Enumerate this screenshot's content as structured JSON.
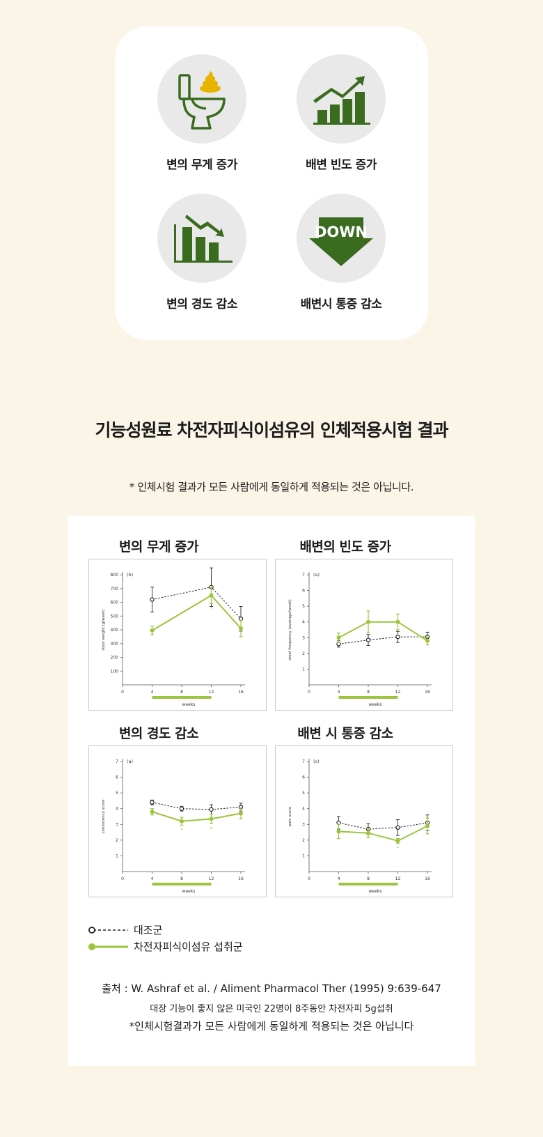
{
  "features": [
    {
      "icon": "toilet-poop-icon",
      "label": "변의 무게 증가"
    },
    {
      "icon": "rising-bar-chart-icon",
      "label": "배변 빈도 증가"
    },
    {
      "icon": "falling-bar-chart-icon",
      "label": "변의 경도 감소"
    },
    {
      "icon": "down-arrow-icon",
      "label": "배변시 통증 감소",
      "icon_text": "DOWN"
    }
  ],
  "colors": {
    "accent_dark": "#3a6b1f",
    "accent_green": "#9cc43c",
    "background": "#fbf5e8",
    "poop": "#e8b400"
  },
  "main_title": "기능성원료 차전자피식이섬유의 인체적용시험 결과",
  "disclaimer_top": "* 인체시험 결과가 모든 사람에게 동일하게 적용되는 것은 아닙니다.",
  "chart_data": [
    {
      "type": "line",
      "title": "변의 무게 증가",
      "panel_tag": "(b)",
      "xlabel": "weeks",
      "ylabel": "stool weight (g/week)",
      "xlim": [
        0,
        16
      ],
      "ylim": [
        0,
        800
      ],
      "xticks": [
        0,
        4,
        8,
        12,
        16
      ],
      "yticks": [
        100,
        200,
        300,
        400,
        500,
        600,
        700,
        800
      ],
      "treatment_period": [
        4,
        12
      ],
      "series": [
        {
          "name": "대조군",
          "x": [
            4,
            12,
            16
          ],
          "values": [
            620,
            710,
            480
          ],
          "err": [
            90,
            140,
            90
          ]
        },
        {
          "name": "차전자피식이섬유 섭취군",
          "x": [
            4,
            12,
            16
          ],
          "values": [
            395,
            650,
            410
          ],
          "err": [
            30,
            60,
            60
          ]
        }
      ],
      "sig_x": [
        12
      ]
    },
    {
      "type": "line",
      "title": "배변의 빈도 증가",
      "panel_tag": "(a)",
      "xlabel": "weeks",
      "ylabel": "stool frequency (average/week)",
      "xlim": [
        0,
        16
      ],
      "ylim": [
        0,
        7
      ],
      "xticks": [
        0,
        4,
        8,
        12,
        16
      ],
      "yticks": [
        1,
        2,
        3,
        4,
        5,
        6,
        7
      ],
      "treatment_period": [
        4,
        12
      ],
      "series": [
        {
          "name": "대조군",
          "x": [
            4,
            8,
            12,
            16
          ],
          "values": [
            2.6,
            2.85,
            3.05,
            3.05
          ],
          "err": [
            0.2,
            0.35,
            0.35,
            0.3
          ]
        },
        {
          "name": "차전자피식이섬유 섭취군",
          "x": [
            4,
            8,
            12,
            16
          ],
          "values": [
            3.0,
            4.0,
            4.0,
            2.8
          ],
          "err": [
            0.3,
            0.7,
            0.5,
            0.25
          ]
        }
      ],
      "sig_x": [
        12
      ]
    },
    {
      "type": "line",
      "title": "변의 경도 감소",
      "panel_tag": "(a)",
      "xlabel": "weeks",
      "ylabel": "consistency score",
      "xlim": [
        0,
        16
      ],
      "ylim": [
        0,
        7
      ],
      "xticks": [
        0,
        4,
        8,
        12,
        16
      ],
      "yticks": [
        1,
        2,
        3,
        4,
        5,
        6,
        7
      ],
      "treatment_period": [
        4,
        12
      ],
      "series": [
        {
          "name": "대조군",
          "x": [
            4,
            8,
            12,
            16
          ],
          "values": [
            4.4,
            4.0,
            3.95,
            4.1
          ],
          "err": [
            0.15,
            0.15,
            0.3,
            0.25
          ]
        },
        {
          "name": "차전자피식이섬유 섭취군",
          "x": [
            4,
            8,
            12,
            16
          ],
          "values": [
            3.8,
            3.2,
            3.35,
            3.7
          ],
          "err": [
            0.2,
            0.25,
            0.3,
            0.35
          ]
        }
      ],
      "sig_x": [
        8,
        12
      ]
    },
    {
      "type": "line",
      "title": "배변 시 통증 감소",
      "panel_tag": "(c)",
      "xlabel": "weeks",
      "ylabel": "pain score",
      "xlim": [
        0,
        16
      ],
      "ylim": [
        0,
        7
      ],
      "xticks": [
        0,
        4,
        8,
        12,
        16
      ],
      "yticks": [
        1,
        2,
        3,
        4,
        5,
        6,
        7
      ],
      "treatment_period": [
        4,
        12
      ],
      "series": [
        {
          "name": "대조군",
          "x": [
            4,
            8,
            12,
            16
          ],
          "values": [
            3.1,
            2.7,
            2.8,
            3.1
          ],
          "err": [
            0.4,
            0.35,
            0.5,
            0.5
          ]
        },
        {
          "name": "차전자피식이섬유 섭취군",
          "x": [
            4,
            8,
            12,
            16
          ],
          "values": [
            2.55,
            2.45,
            1.95,
            2.9
          ],
          "err": [
            0.45,
            0.3,
            0.15,
            0.5
          ]
        }
      ],
      "sig_x": [
        12
      ]
    }
  ],
  "legend": {
    "control": "대조군",
    "treatment": "차전자피식이섬유 섭취군"
  },
  "source": {
    "citation": "출처 : W. Ashraf et al. / Aliment Pharmacol Ther (1995) 9:639-647",
    "detail": "대장 기능이 좋지 않은 미국인 22명이 8주동안 차전자피 5g섭취",
    "disclaimer": "*인체시험결과가 모든 사람에게 동일하게 적용되는 것은 아닙니다"
  }
}
